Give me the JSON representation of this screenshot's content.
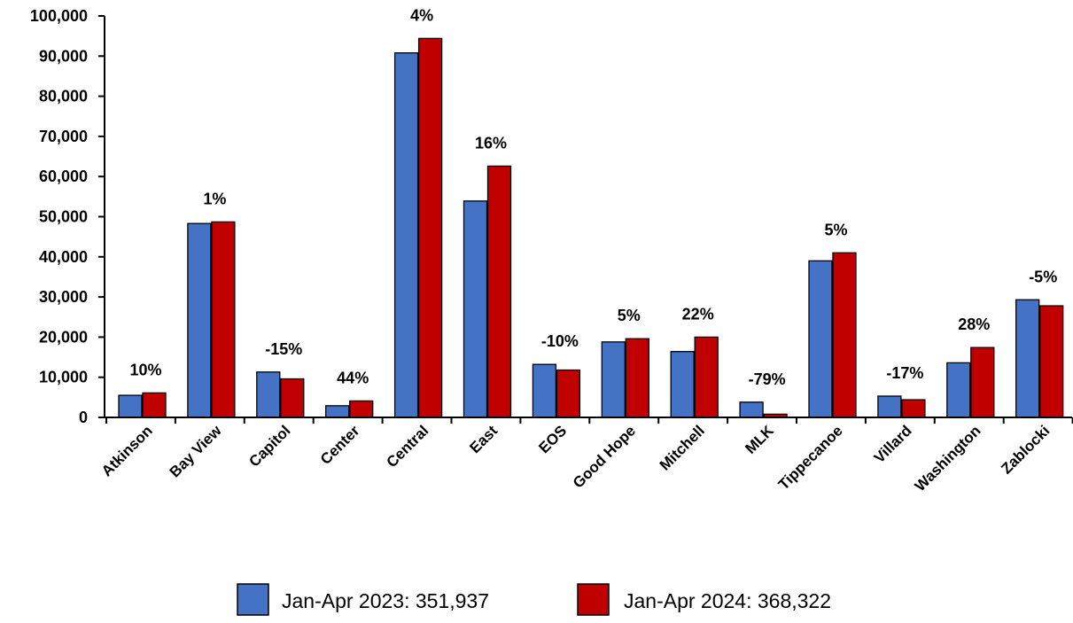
{
  "chart_data": {
    "type": "bar",
    "title": "",
    "xlabel": "",
    "ylabel": "",
    "ylim": [
      0,
      100000
    ],
    "y_ticks": [
      0,
      10000,
      20000,
      30000,
      40000,
      50000,
      60000,
      70000,
      80000,
      90000,
      100000
    ],
    "y_tick_labels": [
      "0",
      "10,000",
      "20,000",
      "30,000",
      "40,000",
      "50,000",
      "60,000",
      "70,000",
      "80,000",
      "90,000",
      "100,000"
    ],
    "categories": [
      "Atkinson",
      "Bay View",
      "Capitol",
      "Center",
      "Central",
      "East",
      "EOS",
      "Good Hope",
      "Mitchell",
      "MLK",
      "Tippecanoe",
      "Villard",
      "Washington",
      "Zablocki"
    ],
    "series": [
      {
        "name": "Jan-Apr 2023: 351,937",
        "color": "#4472C4",
        "values": [
          5500,
          48300,
          11300,
          2900,
          90800,
          53900,
          13200,
          18800,
          16400,
          3800,
          39000,
          5300,
          13600,
          29300
        ]
      },
      {
        "name": "Jan-Apr 2024: 368,322",
        "color": "#C00000",
        "values": [
          6100,
          48700,
          9600,
          4100,
          94400,
          62600,
          11800,
          19600,
          20000,
          800,
          41000,
          4400,
          17400,
          27800
        ]
      }
    ],
    "change_labels": [
      "10%",
      "1%",
      "-15%",
      "44%",
      "4%",
      "16%",
      "-10%",
      "5%",
      "22%",
      "-79%",
      "5%",
      "-17%",
      "28%",
      "-5%"
    ],
    "grid": false,
    "legend_position": "bottom-center"
  }
}
